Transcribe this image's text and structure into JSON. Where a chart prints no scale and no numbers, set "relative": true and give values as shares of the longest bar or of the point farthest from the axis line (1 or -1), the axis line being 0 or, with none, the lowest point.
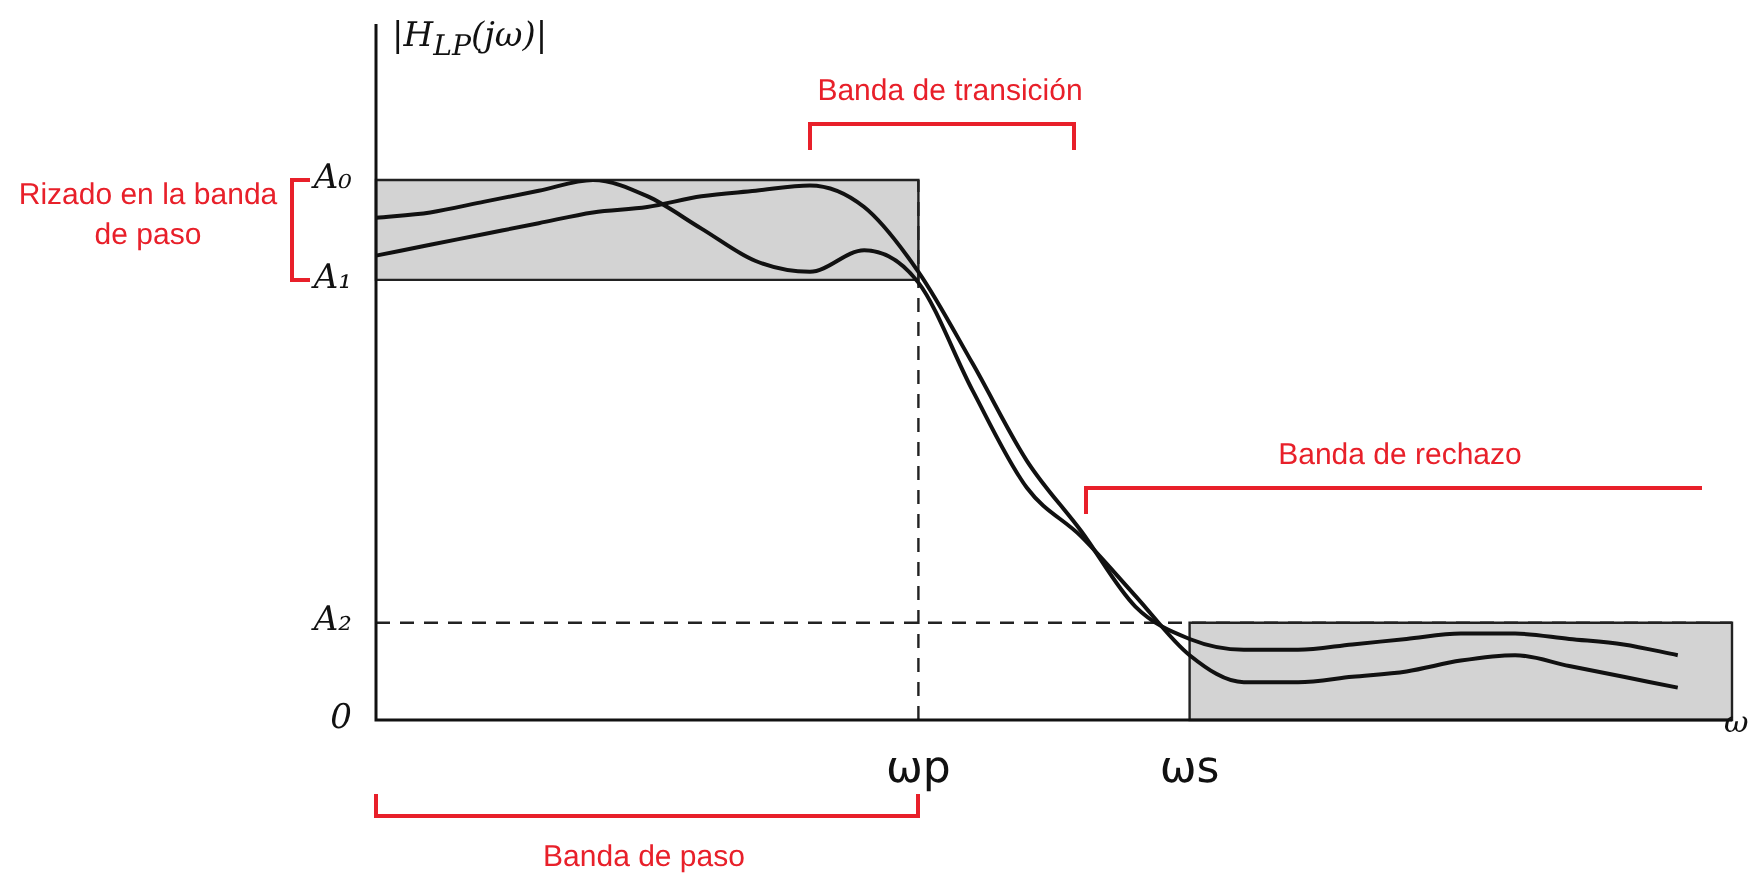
{
  "chart_data": {
    "type": "line",
    "relative": true,
    "ylabel": "|H$_{LP}$(jω)|",
    "xlabel": "ω",
    "categories": [
      null,
      null,
      null,
      null,
      null,
      null,
      null,
      null,
      null,
      null,
      "ωp",
      null,
      null,
      null,
      null,
      "ωs",
      null,
      null,
      null,
      null,
      null,
      null,
      null,
      null,
      null,
      null
    ],
    "grid": false,
    "legend": false,
    "marker": "none",
    "line_style": "solid",
    "series": [
      {
        "color": "#111111",
        "values": [
          0.93,
          0.94,
          0.96,
          0.98,
          1,
          0.97,
          0.91,
          0.85,
          0.83,
          0.87,
          0.81,
          0.61,
          0.43,
          0.34,
          0.23,
          0.12,
          0.07,
          0.07,
          0.08,
          0.09,
          0.11,
          0.12,
          0.1,
          0.08,
          0.06,
          null
        ]
      },
      {
        "color": "#111111",
        "values": [
          0.86,
          0.88,
          0.9,
          0.92,
          0.94,
          0.95,
          0.97,
          0.98,
          0.99,
          0.95,
          0.83,
          0.66,
          0.48,
          0.35,
          0.21,
          0.15,
          0.13,
          0.13,
          0.14,
          0.15,
          0.16,
          0.16,
          0.15,
          0.14,
          0.12,
          null
        ]
      }
    ],
    "bands": [
      {
        "axis": "y",
        "from": 0.815,
        "to": 1,
        "color": "#222222"
      },
      {
        "axis": "y",
        "from": 0,
        "to": 0.18,
        "color": "#222222"
      }
    ],
    "ref_lines": [
      {
        "axis": "x",
        "value": "ωp",
        "line_style": "dashed",
        "color": "#222222"
      },
      {
        "axis": "y",
        "value": 0.18,
        "line_style": "dashed",
        "color": "#222222"
      }
    ],
    "annotations": [
      "Rizado en la banda de paso",
      "Banda de transición",
      "Banda de rechazo",
      "Banda de paso",
      "A₀",
      "A₁",
      "A₂",
      "0"
    ]
  }
}
